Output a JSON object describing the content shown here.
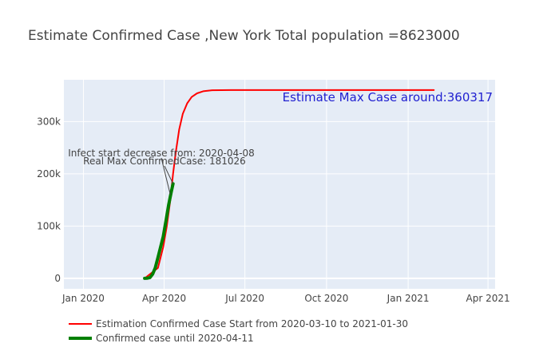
{
  "chart_data": {
    "type": "line",
    "title": "Estimate Confirmed Case ,New York Total population =8623000",
    "xlabel": "",
    "ylabel": "",
    "x_range": [
      "2019-12-10",
      "2021-04-09"
    ],
    "ylim": [
      -20000,
      380000
    ],
    "x_ticks": [
      {
        "date": "2020-01-01",
        "label": "Jan 2020"
      },
      {
        "date": "2020-04-01",
        "label": "Apr 2020"
      },
      {
        "date": "2020-07-01",
        "label": "Jul 2020"
      },
      {
        "date": "2020-10-01",
        "label": "Oct 2020"
      },
      {
        "date": "2021-01-01",
        "label": "Jan 2021"
      },
      {
        "date": "2021-04-01",
        "label": "Apr 2021"
      }
    ],
    "y_ticks": [
      {
        "value": 0,
        "label": "0"
      },
      {
        "value": 100000,
        "label": "100k"
      },
      {
        "value": 200000,
        "label": "200k"
      },
      {
        "value": 300000,
        "label": "300k"
      }
    ],
    "grid": true,
    "legend_position": "bottom-left",
    "series": [
      {
        "name": "Estimation Confirmed Case Start from 2020-03-10 to 2021-01-30",
        "color": "#ff0000",
        "width": 2,
        "points": [
          [
            "2020-03-10",
            0
          ],
          [
            "2020-03-25",
            20000
          ],
          [
            "2020-03-31",
            60000
          ],
          [
            "2020-04-04",
            100000
          ],
          [
            "2020-04-08",
            150000
          ],
          [
            "2020-04-11",
            200000
          ],
          [
            "2020-04-14",
            240000
          ],
          [
            "2020-04-18",
            285000
          ],
          [
            "2020-04-22",
            315000
          ],
          [
            "2020-04-27",
            335000
          ],
          [
            "2020-05-02",
            347000
          ],
          [
            "2020-05-08",
            354000
          ],
          [
            "2020-05-15",
            358000
          ],
          [
            "2020-05-25",
            360000
          ],
          [
            "2020-06-15",
            360300
          ],
          [
            "2020-08-01",
            360317
          ],
          [
            "2021-01-30",
            360317
          ]
        ]
      },
      {
        "name": "Confirmed case until 2020-04-11",
        "color": "#008000",
        "width": 4,
        "points": [
          [
            "2020-03-10",
            0
          ],
          [
            "2020-03-13",
            300
          ],
          [
            "2020-03-16",
            1500
          ],
          [
            "2020-03-19",
            8000
          ],
          [
            "2020-03-22",
            20000
          ],
          [
            "2020-03-25",
            40000
          ],
          [
            "2020-03-28",
            60000
          ],
          [
            "2020-03-31",
            80000
          ],
          [
            "2020-04-03",
            110000
          ],
          [
            "2020-04-06",
            140000
          ],
          [
            "2020-04-09",
            165000
          ],
          [
            "2020-04-11",
            181026
          ]
        ]
      }
    ],
    "annotations": [
      {
        "text": "Infect start decrease from: 2020-04-08",
        "point": [
          "2020-04-08",
          160000
        ],
        "color": "#444444"
      },
      {
        "text": "Real Max ConfirmedCase: 181026",
        "point": [
          "2020-04-11",
          181026
        ],
        "color": "#444444"
      },
      {
        "text": "Estimate Max Case around:360317",
        "color": "#1f1fd0"
      }
    ]
  }
}
